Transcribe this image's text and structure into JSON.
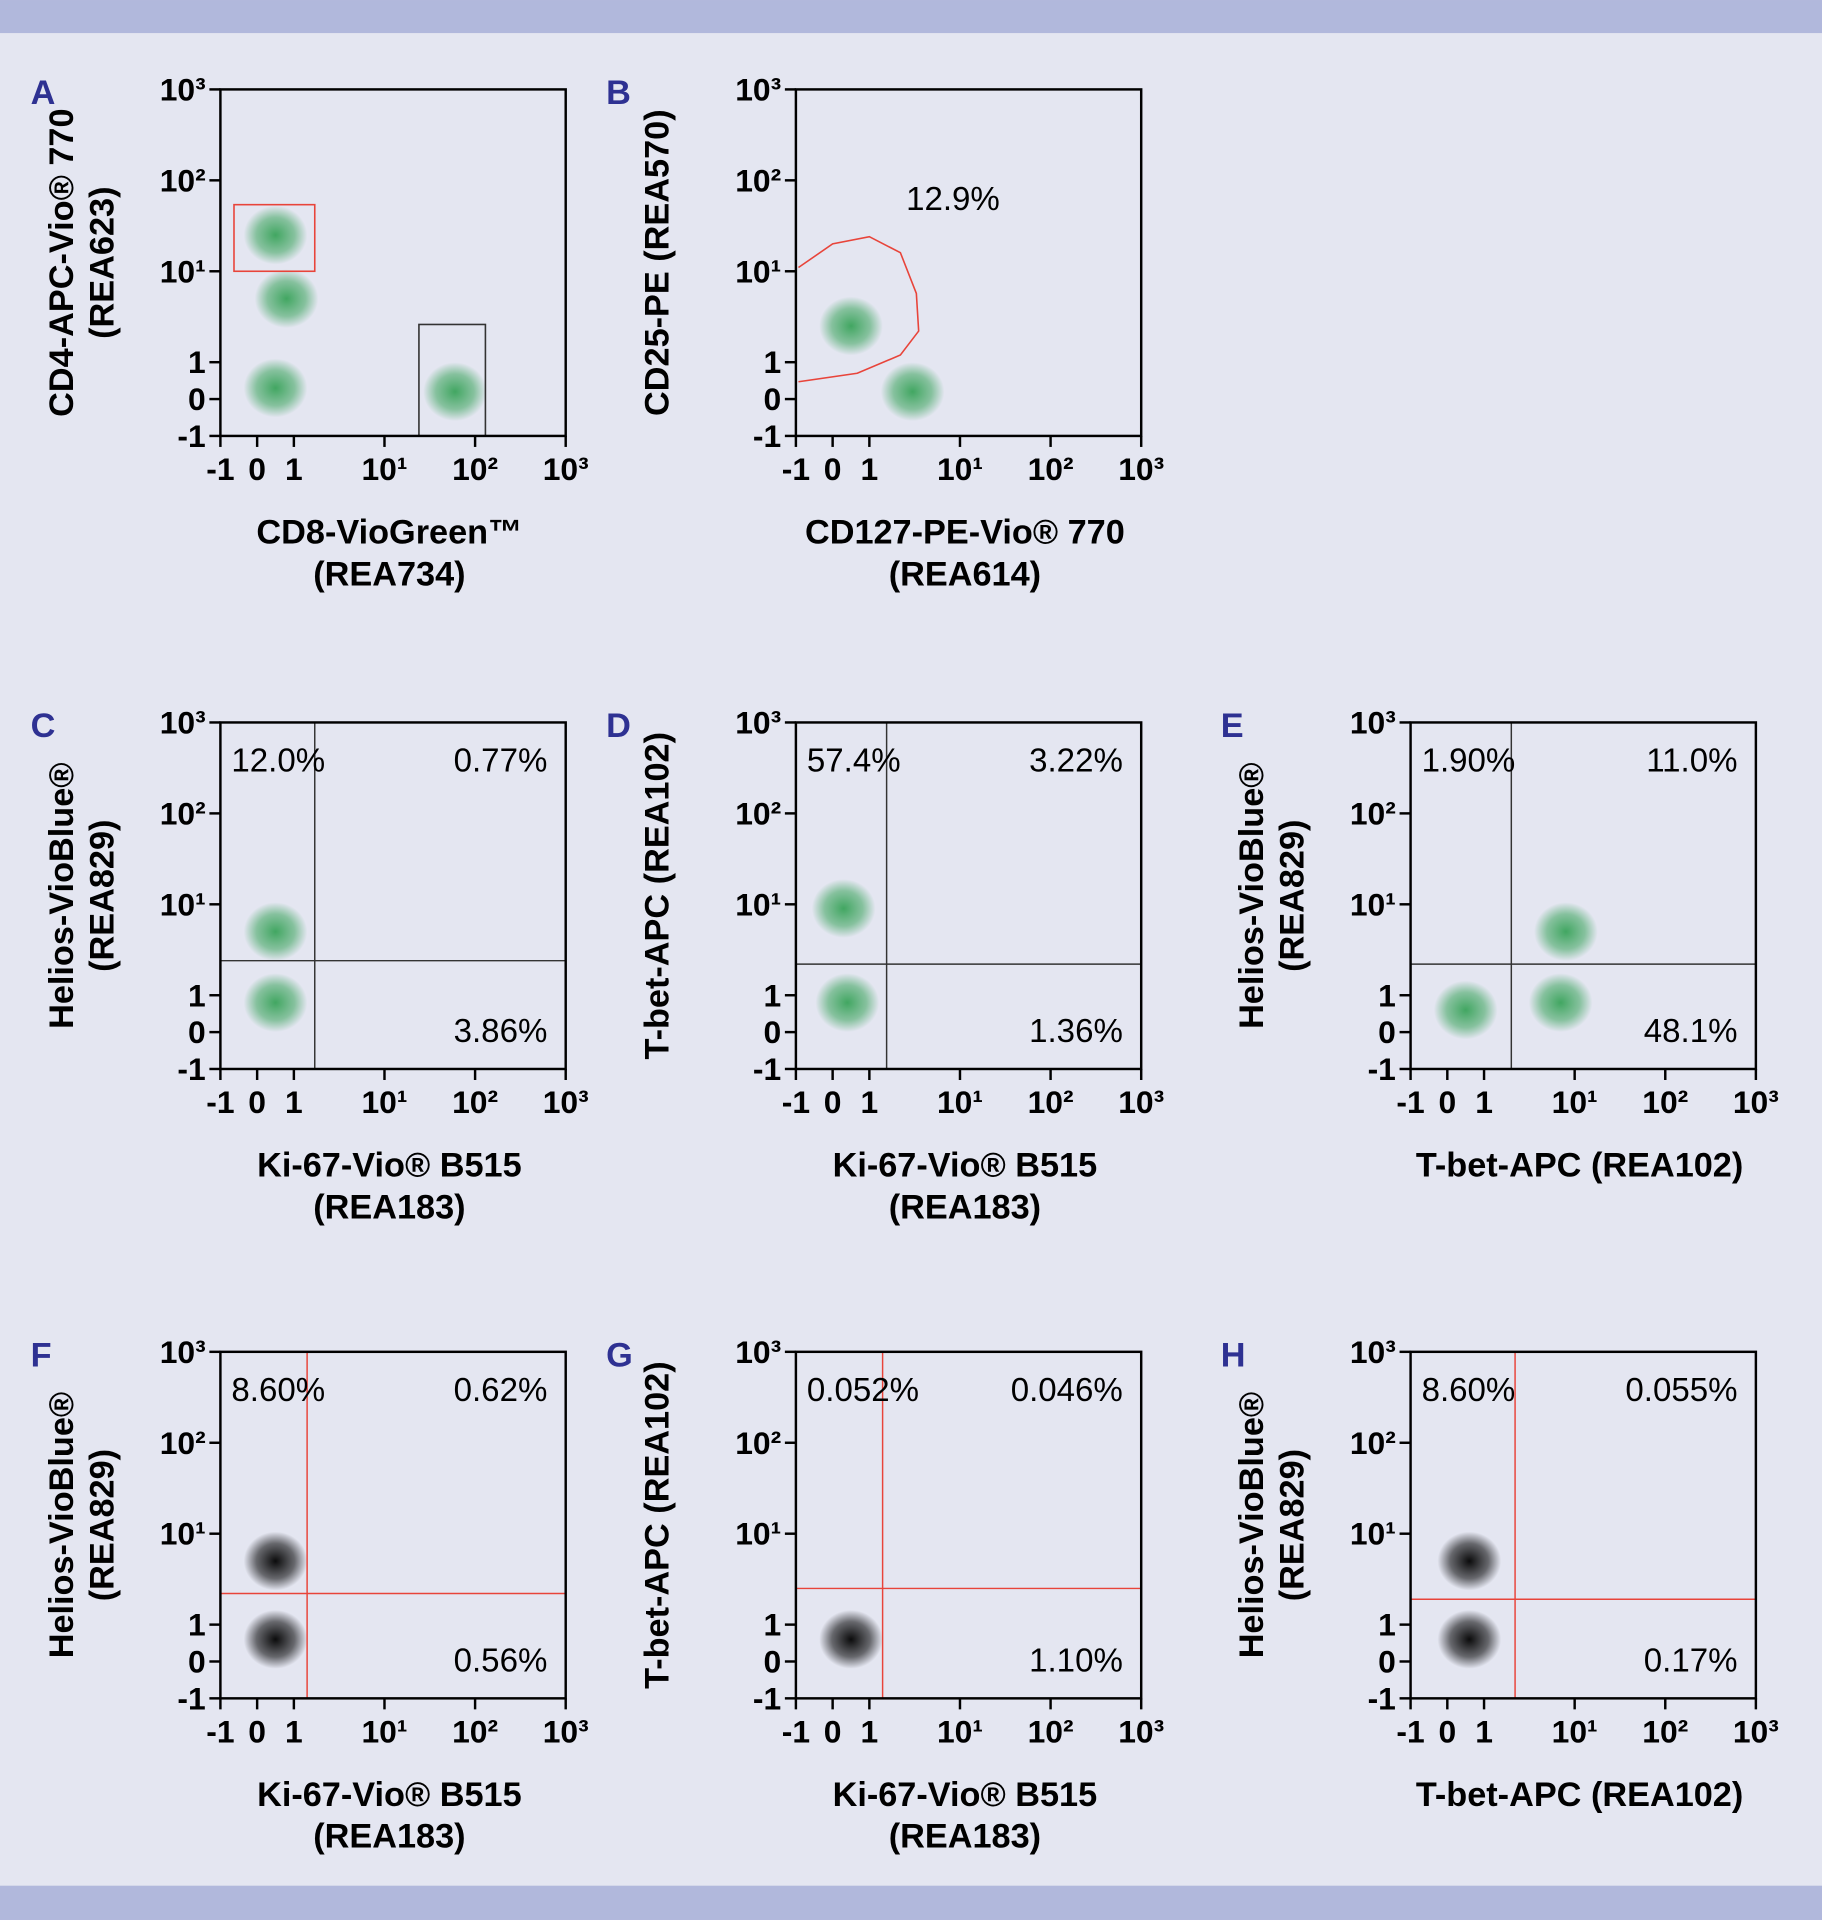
{
  "chart_data": [
    {
      "type": "scatter",
      "panel": "A",
      "xlabel": [
        "CD8-VioGreen™",
        "(REA734)"
      ],
      "ylabel": [
        "CD4-APC-Vio® 770",
        "(REA623)"
      ],
      "xscale": "biexponential",
      "yscale": "biexponential",
      "xlim": [
        -1,
        1000
      ],
      "ylim": [
        -1,
        1000
      ],
      "xticks": [
        -1,
        0,
        1,
        {
          "value": 10,
          "label": "10¹"
        },
        {
          "value": 100,
          "label": "10²"
        },
        {
          "value": 1000,
          "label": "10³"
        }
      ],
      "yticks": [
        -1,
        0,
        1,
        {
          "value": 10,
          "label": "10¹"
        },
        {
          "value": 100,
          "label": "10²"
        },
        {
          "value": 1000,
          "label": "10³"
        }
      ],
      "color": "#39a35a",
      "x": [
        0.5,
        0.8,
        0.5,
        60
      ],
      "y": [
        25,
        5,
        0.3,
        0.2
      ],
      "gates": [
        {
          "shape": "rect",
          "x": [
            -0.63,
            1.7
          ],
          "y": [
            10,
            54
          ],
          "color": "#e8443a"
        },
        {
          "shape": "rect",
          "x": [
            24,
            130
          ],
          "y": [
            -1,
            2.6
          ],
          "color": "#333333"
        }
      ]
    },
    {
      "type": "scatter",
      "panel": "B",
      "xlabel": [
        "CD127-PE-Vio® 770",
        "(REA614)"
      ],
      "ylabel": [
        "CD25-PE (REA570)"
      ],
      "xscale": "biexponential",
      "yscale": "biexponential",
      "xlim": [
        -1,
        1000
      ],
      "ylim": [
        -1,
        1000
      ],
      "xticks": [
        -1,
        0,
        1,
        {
          "value": 10,
          "label": "10¹"
        },
        {
          "value": 100,
          "label": "10²"
        },
        {
          "value": 1000,
          "label": "10³"
        }
      ],
      "yticks": [
        -1,
        0,
        1,
        {
          "value": 10,
          "label": "10¹"
        },
        {
          "value": 100,
          "label": "10²"
        },
        {
          "value": 1000,
          "label": "10³"
        }
      ],
      "color": "#39a35a",
      "x": [
        3,
        0.5
      ],
      "y": [
        0.2,
        2.5
      ],
      "gates": [
        {
          "shape": "polygon",
          "x": [
            -0.93,
            0,
            1,
            2.2,
            3.3,
            3.5,
            2.2,
            0.67,
            -0.93
          ],
          "y": [
            11,
            20,
            24,
            16,
            5.7,
            2.2,
            1.2,
            0.7,
            0.47
          ],
          "color": "#e8443a",
          "label": "12.9%"
        }
      ]
    },
    {
      "type": "scatter",
      "panel": "C",
      "xlabel": [
        "Ki-67-Vio® B515",
        "(REA183)"
      ],
      "ylabel": [
        "Helios-VioBlue®",
        "(REA829)"
      ],
      "xscale": "biexponential",
      "yscale": "biexponential",
      "xlim": [
        -1,
        1000
      ],
      "ylim": [
        -1,
        1000
      ],
      "xticks": [
        -1,
        0,
        1,
        {
          "value": 10,
          "label": "10¹"
        },
        {
          "value": 100,
          "label": "10²"
        },
        {
          "value": 1000,
          "label": "10³"
        }
      ],
      "yticks": [
        -1,
        0,
        1,
        {
          "value": 10,
          "label": "10¹"
        },
        {
          "value": 100,
          "label": "10²"
        },
        {
          "value": 1000,
          "label": "10³"
        }
      ],
      "color": "#39a35a",
      "x": [
        0.5,
        0.5
      ],
      "y": [
        5,
        0.8
      ],
      "quadrant": {
        "x": 1.7,
        "y": 2.4,
        "color": "#333333"
      },
      "annotations": [
        {
          "text": "12.0%",
          "corner": "top-left"
        },
        {
          "text": "0.77%",
          "corner": "top-right"
        },
        {
          "text": "3.86%",
          "corner": "bottom-right"
        }
      ]
    },
    {
      "type": "scatter",
      "panel": "D",
      "xlabel": [
        "Ki-67-Vio® B515",
        "(REA183)"
      ],
      "ylabel": [
        "T-bet-APC (REA102)"
      ],
      "xscale": "biexponential",
      "yscale": "biexponential",
      "xlim": [
        -1,
        1000
      ],
      "ylim": [
        -1,
        1000
      ],
      "xticks": [
        -1,
        0,
        1,
        {
          "value": 10,
          "label": "10¹"
        },
        {
          "value": 100,
          "label": "10²"
        },
        {
          "value": 1000,
          "label": "10³"
        }
      ],
      "yticks": [
        -1,
        0,
        1,
        {
          "value": 10,
          "label": "10¹"
        },
        {
          "value": 100,
          "label": "10²"
        },
        {
          "value": 1000,
          "label": "10³"
        }
      ],
      "color": "#39a35a",
      "x": [
        0.3,
        0.4
      ],
      "y": [
        9,
        0.8
      ],
      "quadrant": {
        "x": 1.55,
        "y": 2.2,
        "color": "#333333"
      },
      "annotations": [
        {
          "text": "57.4%",
          "corner": "top-left"
        },
        {
          "text": "3.22%",
          "corner": "top-right"
        },
        {
          "text": "1.36%",
          "corner": "bottom-right"
        }
      ]
    },
    {
      "type": "scatter",
      "panel": "E",
      "xlabel": [
        "T-bet-APC (REA102)"
      ],
      "ylabel": [
        "Helios-VioBlue®",
        "(REA829)"
      ],
      "xscale": "biexponential",
      "yscale": "biexponential",
      "xlim": [
        -1,
        1000
      ],
      "ylim": [
        -1,
        1000
      ],
      "xticks": [
        -1,
        0,
        1,
        {
          "value": 10,
          "label": "10¹"
        },
        {
          "value": 100,
          "label": "10²"
        },
        {
          "value": 1000,
          "label": "10³"
        }
      ],
      "yticks": [
        -1,
        0,
        1,
        {
          "value": 10,
          "label": "10¹"
        },
        {
          "value": 100,
          "label": "10²"
        },
        {
          "value": 1000,
          "label": "10³"
        }
      ],
      "color": "#39a35a",
      "x": [
        0.5,
        7,
        8
      ],
      "y": [
        0.6,
        0.8,
        5
      ],
      "quadrant": {
        "x": 2.0,
        "y": 2.2,
        "color": "#333333"
      },
      "annotations": [
        {
          "text": "1.90%",
          "corner": "top-left"
        },
        {
          "text": "11.0%",
          "corner": "top-right"
        },
        {
          "text": "48.1%",
          "corner": "bottom-right"
        }
      ]
    },
    {
      "type": "scatter",
      "panel": "F",
      "xlabel": [
        "Ki-67-Vio® B515",
        "(REA183)"
      ],
      "ylabel": [
        "Helios-VioBlue®",
        "(REA829)"
      ],
      "xscale": "biexponential",
      "yscale": "biexponential",
      "xlim": [
        -1,
        1000
      ],
      "ylim": [
        -1,
        1000
      ],
      "xticks": [
        -1,
        0,
        1,
        {
          "value": 10,
          "label": "10¹"
        },
        {
          "value": 100,
          "label": "10²"
        },
        {
          "value": 1000,
          "label": "10³"
        }
      ],
      "yticks": [
        -1,
        0,
        1,
        {
          "value": 10,
          "label": "10¹"
        },
        {
          "value": 100,
          "label": "10²"
        },
        {
          "value": 1000,
          "label": "10³"
        }
      ],
      "color": "#000000",
      "x": [
        0.5,
        0.5
      ],
      "y": [
        5,
        0.6
      ],
      "quadrant": {
        "x": 1.4,
        "y": 2.2,
        "color": "#e8443a"
      },
      "annotations": [
        {
          "text": "8.60%",
          "corner": "top-left"
        },
        {
          "text": "0.62%",
          "corner": "top-right"
        },
        {
          "text": "0.56%",
          "corner": "bottom-right"
        }
      ]
    },
    {
      "type": "scatter",
      "panel": "G",
      "xlabel": [
        "Ki-67-Vio® B515",
        "(REA183)"
      ],
      "ylabel": [
        "T-bet-APC (REA102)"
      ],
      "xscale": "biexponential",
      "yscale": "biexponential",
      "xlim": [
        -1,
        1000
      ],
      "ylim": [
        -1,
        1000
      ],
      "xticks": [
        -1,
        0,
        1,
        {
          "value": 10,
          "label": "10¹"
        },
        {
          "value": 100,
          "label": "10²"
        },
        {
          "value": 1000,
          "label": "10³"
        }
      ],
      "yticks": [
        -1,
        0,
        1,
        {
          "value": 10,
          "label": "10¹"
        },
        {
          "value": 100,
          "label": "10²"
        },
        {
          "value": 1000,
          "label": "10³"
        }
      ],
      "color": "#000000",
      "x": [
        0.5
      ],
      "y": [
        0.6
      ],
      "quadrant": {
        "x": 1.4,
        "y": 2.5,
        "color": "#e8443a"
      },
      "annotations": [
        {
          "text": "0.052%",
          "corner": "top-left"
        },
        {
          "text": "0.046%",
          "corner": "top-right"
        },
        {
          "text": "1.10%",
          "corner": "bottom-right"
        }
      ]
    },
    {
      "type": "scatter",
      "panel": "H",
      "xlabel": [
        "T-bet-APC (REA102)"
      ],
      "ylabel": [
        "Helios-VioBlue®",
        "(REA829)"
      ],
      "xscale": "biexponential",
      "yscale": "biexponential",
      "xlim": [
        -1,
        1000
      ],
      "ylim": [
        -1,
        1000
      ],
      "xticks": [
        -1,
        0,
        1,
        {
          "value": 10,
          "label": "10¹"
        },
        {
          "value": 100,
          "label": "10²"
        },
        {
          "value": 1000,
          "label": "10³"
        }
      ],
      "yticks": [
        -1,
        0,
        1,
        {
          "value": 10,
          "label": "10¹"
        },
        {
          "value": 100,
          "label": "10²"
        },
        {
          "value": 1000,
          "label": "10³"
        }
      ],
      "color": "#000000",
      "x": [
        0.6,
        0.6
      ],
      "y": [
        5,
        0.6
      ],
      "quadrant": {
        "x": 2.2,
        "y": 1.9,
        "color": "#e8443a"
      },
      "annotations": [
        {
          "text": "8.60%",
          "corner": "top-left"
        },
        {
          "text": "0.055%",
          "corner": "top-right"
        },
        {
          "text": "0.17%",
          "corner": "bottom-right"
        }
      ]
    }
  ]
}
